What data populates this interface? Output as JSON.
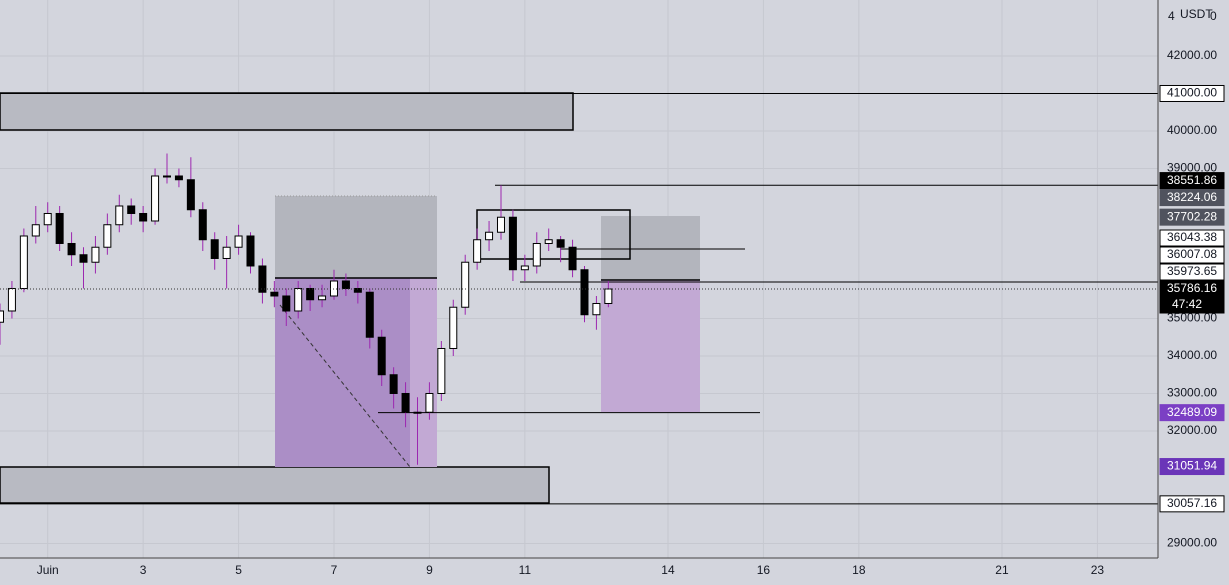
{
  "chart_data": {
    "type": "candlestick",
    "corner_texts": [
      "4",
      "USDT",
      "0"
    ],
    "xlim": [
      0,
      24.27
    ],
    "ylim": [
      28613,
      43493
    ],
    "xticks": [
      {
        "value": 1,
        "label": "Juin"
      },
      3,
      5,
      7,
      9,
      11,
      14,
      16,
      18,
      21,
      23
    ],
    "yticks": [
      {
        "value": 42000,
        "label": "42000.00"
      },
      {
        "value": 40000,
        "label": "40000.00"
      },
      {
        "value": 39000,
        "label": "39000.00"
      },
      {
        "value": 35000,
        "label": "35000.00"
      },
      {
        "value": 34000,
        "label": "34000.00"
      },
      {
        "value": 33000,
        "label": "33000.00"
      },
      {
        "value": 32000,
        "label": "32000.00"
      },
      {
        "value": 29000,
        "label": "29000.00"
      }
    ],
    "grid": true,
    "up_color": "#ffffff",
    "down_color": "#000000",
    "wick_color": "#9c27b0",
    "x": [
      0,
      0.25,
      0.5,
      0.75,
      1,
      1.25,
      1.5,
      1.75,
      2,
      2.25,
      2.5,
      2.75,
      3,
      3.25,
      3.5,
      3.75,
      4,
      4.25,
      4.5,
      4.75,
      5,
      5.25,
      5.5,
      5.75,
      6,
      6.25,
      6.5,
      6.75,
      7,
      7.25,
      7.5,
      7.75,
      8,
      8.25,
      8.5,
      8.75,
      9,
      9.25,
      9.5,
      9.75,
      10,
      10.25,
      10.5,
      10.75,
      11,
      11.25,
      11.5,
      11.75,
      12,
      12.25,
      12.5,
      12.75
    ],
    "open": [
      34900,
      35200,
      35800,
      37200,
      37500,
      37800,
      37000,
      36700,
      36500,
      36900,
      37500,
      38000,
      37800,
      37600,
      38800,
      38800,
      38700,
      37900,
      37100,
      36600,
      36900,
      37200,
      36400,
      35700,
      35600,
      35200,
      35800,
      35500,
      35600,
      36000,
      35800,
      35700,
      34500,
      33500,
      33000,
      32500,
      32500,
      33000,
      34200,
      35300,
      36500,
      37100,
      37300,
      37700,
      36300,
      36400,
      37000,
      37100,
      36900,
      36300,
      35100,
      35400
    ],
    "high": [
      35400,
      36000,
      37400,
      38000,
      38100,
      38000,
      37300,
      36900,
      37200,
      37800,
      38300,
      38200,
      38000,
      39000,
      39400,
      39000,
      39300,
      38100,
      37300,
      37200,
      37500,
      37300,
      36600,
      36000,
      35800,
      36000,
      35900,
      35900,
      36300,
      36200,
      36000,
      35800,
      34700,
      33700,
      33300,
      32900,
      33300,
      34400,
      35500,
      36700,
      37400,
      37600,
      38552,
      37900,
      36700,
      37300,
      37400,
      37200,
      37100,
      36400,
      35600,
      36000
    ],
    "low": [
      34300,
      35000,
      35700,
      37000,
      37300,
      36800,
      36400,
      35800,
      36200,
      36700,
      37300,
      37500,
      37300,
      37500,
      38600,
      38500,
      37700,
      36800,
      36300,
      35800,
      36700,
      36200,
      35400,
      35300,
      34800,
      35000,
      35200,
      35300,
      35500,
      35600,
      35400,
      34200,
      33200,
      32600,
      32100,
      31100,
      32300,
      32800,
      34000,
      35100,
      36300,
      36800,
      37100,
      36000,
      36000,
      36200,
      36800,
      36500,
      36100,
      34900,
      34700,
      35300
    ],
    "close": [
      35200,
      35800,
      37200,
      37500,
      37800,
      37000,
      36700,
      36500,
      36900,
      37500,
      38000,
      37800,
      37600,
      38800,
      38800,
      38700,
      37900,
      37100,
      36600,
      36900,
      37200,
      36400,
      35700,
      35600,
      35200,
      35800,
      35500,
      35600,
      36000,
      35800,
      35700,
      34500,
      33500,
      33000,
      32500,
      32500,
      33000,
      34200,
      35300,
      36500,
      37100,
      37300,
      37700,
      36300,
      36400,
      37000,
      37100,
      36900,
      36300,
      35100,
      35400,
      35786
    ],
    "price_labels": [
      {
        "value": 41000,
        "label": "41000.00",
        "bg": "#ffffff",
        "fg": "#131722"
      },
      {
        "value": 38551.86,
        "label": "38551.86",
        "bg": "#000000",
        "fg": "#ffffff"
      },
      {
        "value": 38224.06,
        "label": "38224.06",
        "bg": "#50535e",
        "fg": "#ffffff"
      },
      {
        "value": 37702.28,
        "label": "37702.28",
        "bg": "#50535e",
        "fg": "#ffffff"
      },
      {
        "value": 36043.38,
        "label": "36043.38",
        "bg": "#ffffff",
        "fg": "#131722"
      },
      {
        "value": 36007.08,
        "label": "36007.08",
        "bg": "#ffffff",
        "fg": "#131722"
      },
      {
        "value": 35973.65,
        "label": "35973.65",
        "bg": "#ffffff",
        "fg": "#131722"
      },
      {
        "value": 35786.16,
        "label": "35786.16",
        "bg": "#000000",
        "fg": "#ffffff",
        "countdown": "47:42"
      },
      {
        "value": 32489.09,
        "label": "32489.09",
        "bg": "#7b3fc4",
        "fg": "#ffffff"
      },
      {
        "value": 31051.94,
        "label": "31051.94",
        "bg": "#6a35b8",
        "fg": "#ffffff"
      },
      {
        "value": 30057.16,
        "label": "30057.16",
        "bg": "#ffffff",
        "fg": "#131722"
      }
    ]
  }
}
